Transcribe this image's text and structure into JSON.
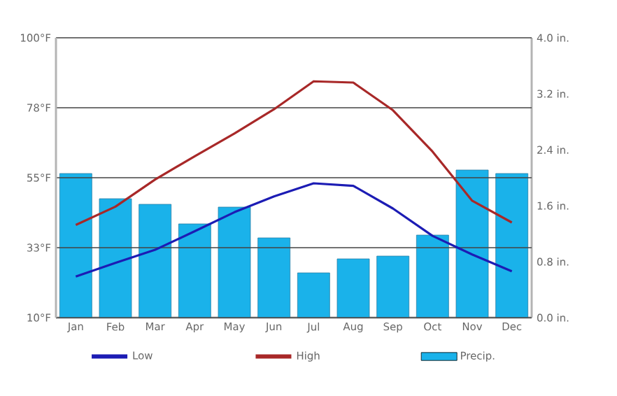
{
  "chart_data": {
    "type": "line",
    "categories": [
      "Jan",
      "Feb",
      "Mar",
      "Apr",
      "May",
      "Jun",
      "Jul",
      "Aug",
      "Sep",
      "Oct",
      "Nov",
      "Dec"
    ],
    "series": [
      {
        "name": "Low",
        "color": "#1c1cb4",
        "values": [
          23.2,
          27.6,
          31.8,
          37.8,
          43.9,
          49.0,
          53.2,
          52.4,
          45.1,
          36.3,
          30.3,
          24.9
        ]
      },
      {
        "name": "High",
        "color": "#a82828",
        "values": [
          39.8,
          45.7,
          54.4,
          61.9,
          69.2,
          77.0,
          86.0,
          85.6,
          76.7,
          63.4,
          47.6,
          40.6
        ]
      },
      {
        "name": "Precip.",
        "type": "bar",
        "axis": "y2",
        "color": "#1ab2ea",
        "values": [
          2.06,
          1.7,
          1.62,
          1.34,
          1.58,
          1.14,
          0.64,
          0.84,
          0.88,
          1.18,
          2.11,
          2.06
        ]
      }
    ],
    "ylim": [
      10,
      100
    ],
    "yticks": [
      {
        "value": 10,
        "label": "10°F"
      },
      {
        "value": 32.5,
        "label": "33°F"
      },
      {
        "value": 55,
        "label": "55°F"
      },
      {
        "value": 77.5,
        "label": "78°F"
      },
      {
        "value": 100,
        "label": "100°F"
      }
    ],
    "y2lim": [
      0,
      4
    ],
    "y2ticks": [
      {
        "value": 0,
        "label": "0.0 in."
      },
      {
        "value": 0.8,
        "label": "0.8 in."
      },
      {
        "value": 1.6,
        "label": "1.6 in."
      },
      {
        "value": 2.4,
        "label": "2.4 in."
      },
      {
        "value": 3.2,
        "label": "3.2 in."
      },
      {
        "value": 4,
        "label": "4.0 in."
      }
    ],
    "grid": "y",
    "legend": "bottom",
    "marker": "none",
    "line_style": "solid"
  }
}
